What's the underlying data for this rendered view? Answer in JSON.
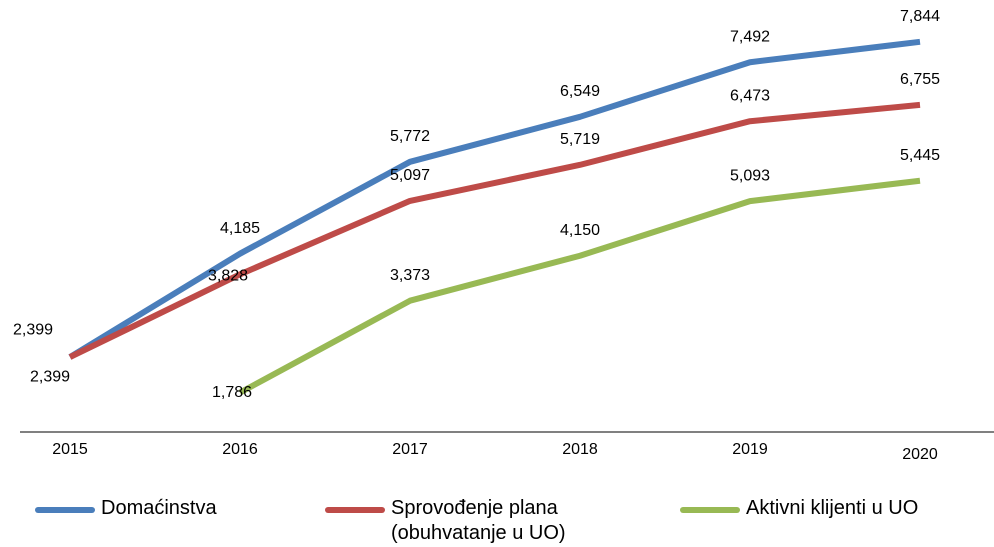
{
  "chart_data": {
    "type": "line",
    "categories": [
      "2015",
      "2016",
      "2017",
      "2018",
      "2019",
      "2020"
    ],
    "series": [
      {
        "name": "Domaćinstva",
        "color": "#4a7ebb",
        "values": [
          2399,
          4185,
          5772,
          6549,
          7492,
          7844
        ],
        "value_labels": [
          "2,399",
          "4,185",
          "5,772",
          "6,549",
          "7,492",
          "7,844"
        ]
      },
      {
        "name": "Sprovođenje plana (obuhvatanje u UO)",
        "color": "#be4b48",
        "values": [
          2399,
          3828,
          5097,
          5719,
          6473,
          6755
        ],
        "value_labels": [
          "2,399",
          "3,828",
          "5,097",
          "5,719",
          "6,473",
          "6,755"
        ]
      },
      {
        "name": "Aktivni klijenti u UO",
        "color": "#98b954",
        "values": [
          null,
          1786,
          3373,
          4150,
          5093,
          5445
        ],
        "value_labels": [
          null,
          "1,786",
          "3,373",
          "4,150",
          "5,093",
          "5,445"
        ]
      }
    ],
    "legend": "bottom"
  }
}
